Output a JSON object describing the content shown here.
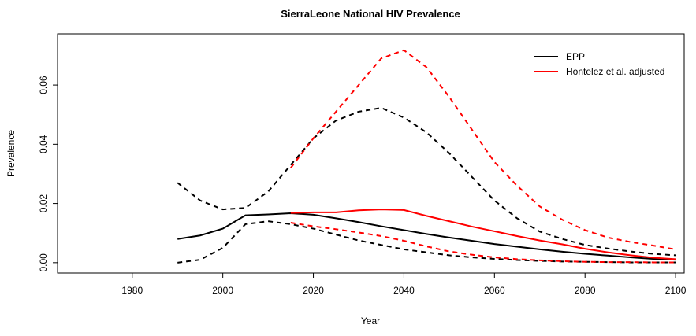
{
  "chart_data": {
    "type": "line",
    "title": "SierraLeone  National HIV Prevalence",
    "x_label": "Year",
    "y_label": "Prevalence",
    "x": [
      1990,
      1995,
      2000,
      2005,
      2010,
      2015,
      2020,
      2025,
      2030,
      2035,
      2040,
      2045,
      2050,
      2055,
      2060,
      2065,
      2070,
      2075,
      2080,
      2085,
      2090,
      2095,
      2100
    ],
    "series": [
      {
        "name": "EPP",
        "color": "#000000",
        "dash": false,
        "values": [
          0.008,
          0.0092,
          0.0115,
          0.016,
          0.0163,
          0.0167,
          0.0162,
          0.015,
          0.0137,
          0.0123,
          0.011,
          0.0097,
          0.0085,
          0.0074,
          0.0063,
          0.0054,
          0.0045,
          0.0037,
          0.003,
          0.0024,
          0.0018,
          0.0013,
          0.001
        ]
      },
      {
        "name": "Hontelez et al. adjusted",
        "color": "#ff0000",
        "dash": false,
        "values": [
          null,
          null,
          null,
          null,
          null,
          0.0168,
          0.017,
          0.017,
          0.0177,
          0.018,
          0.0178,
          0.0158,
          0.014,
          0.0122,
          0.0106,
          0.009,
          0.0075,
          0.0062,
          0.0047,
          0.0035,
          0.0025,
          0.0017,
          0.0012
        ]
      },
      {
        "color": "#000000",
        "dash": true,
        "values": [
          0.027,
          0.021,
          0.018,
          0.0185,
          0.024,
          0.033,
          0.042,
          0.048,
          0.051,
          0.0523,
          0.049,
          0.044,
          0.037,
          0.029,
          0.021,
          0.015,
          0.0105,
          0.008,
          0.006,
          0.0048,
          0.0038,
          0.003,
          0.0025
        ]
      },
      {
        "color": "#000000",
        "dash": true,
        "values": [
          0,
          0.001,
          0.005,
          0.013,
          0.014,
          0.013,
          0.0115,
          0.0095,
          0.0075,
          0.006,
          0.0045,
          0.0035,
          0.0025,
          0.0018,
          0.0013,
          0.0009,
          0.0006,
          0.0004,
          0.0003,
          0.0002,
          0.0001,
          0.0001,
          0.0001
        ]
      },
      {
        "color": "#ff0000",
        "dash": true,
        "values": [
          null,
          null,
          null,
          null,
          null,
          0.032,
          0.042,
          0.051,
          0.06,
          0.069,
          0.0718,
          0.066,
          0.056,
          0.045,
          0.034,
          0.026,
          0.019,
          0.0145,
          0.011,
          0.0085,
          0.007,
          0.0058,
          0.0045
        ]
      },
      {
        "color": "#ff0000",
        "dash": true,
        "values": [
          null,
          null,
          null,
          null,
          null,
          0.0135,
          0.0123,
          0.0113,
          0.0102,
          0.009,
          0.0074,
          0.0055,
          0.0038,
          0.0027,
          0.0018,
          0.0012,
          0.0008,
          0.0005,
          0.0003,
          0.0002,
          0.0002,
          0.0001,
          0.0001
        ]
      }
    ],
    "xlim": [
      1963.5,
      2101.9
    ],
    "ylim": [
      -0.0035,
      0.0773
    ],
    "xticks": [
      1980,
      2000,
      2020,
      2040,
      2060,
      2080,
      2100
    ],
    "yticks": [
      {
        "value": 0,
        "label": "0.00"
      },
      {
        "value": 0.02,
        "label": "0.02"
      },
      {
        "value": 0.04,
        "label": "0.04"
      },
      {
        "value": 0.06,
        "label": "0.06"
      }
    ],
    "legend": "top-right"
  }
}
